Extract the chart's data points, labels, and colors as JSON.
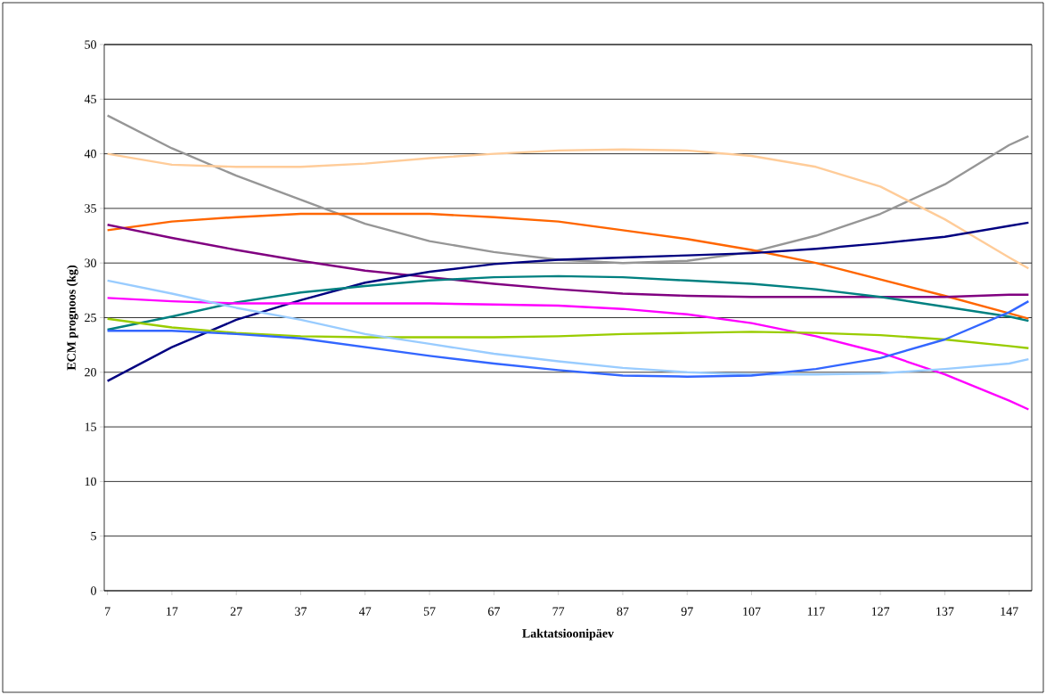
{
  "chart_data": {
    "type": "line",
    "xlabel": "Laktatsioonipäev",
    "ylabel": "ECM prognoos (kg)",
    "x": [
      7,
      17,
      27,
      37,
      47,
      57,
      67,
      77,
      87,
      97,
      107,
      117,
      127,
      137,
      147,
      150
    ],
    "xlim": [
      6.5,
      150.5
    ],
    "xticks": [
      7,
      17,
      27,
      37,
      47,
      57,
      67,
      77,
      87,
      97,
      107,
      117,
      127,
      137,
      147
    ],
    "ylim": [
      0,
      50
    ],
    "yticks": [
      0,
      5,
      10,
      15,
      20,
      25,
      30,
      35,
      40,
      45,
      50
    ],
    "grid": "y",
    "marker": "none",
    "line_style": "solid",
    "series": [
      {
        "color": "#969696",
        "values": [
          43.5,
          40.5,
          38,
          35.8,
          33.6,
          32,
          31,
          30.3,
          30,
          30.2,
          31,
          32.5,
          34.5,
          37.2,
          40.8,
          41.6
        ]
      },
      {
        "color": "#ffcc99",
        "values": [
          40,
          39,
          38.8,
          38.8,
          39.1,
          39.6,
          40,
          40.3,
          40.4,
          40.3,
          39.8,
          38.8,
          37,
          34,
          30.5,
          29.5
        ]
      },
      {
        "color": "#ff6600",
        "values": [
          33,
          33.8,
          34.2,
          34.5,
          34.5,
          34.5,
          34.2,
          33.8,
          33,
          32.2,
          31.2,
          30,
          28.5,
          27,
          25.4,
          24.9
        ]
      },
      {
        "color": "#800080",
        "values": [
          33.5,
          32.3,
          31.2,
          30.2,
          29.3,
          28.7,
          28.1,
          27.6,
          27.2,
          27,
          26.9,
          26.9,
          26.9,
          26.9,
          27.1,
          27.1
        ]
      },
      {
        "color": "#000080",
        "values": [
          19.2,
          22.3,
          24.8,
          26.6,
          28.2,
          29.2,
          29.9,
          30.3,
          30.5,
          30.7,
          30.9,
          31.3,
          31.8,
          32.4,
          33.4,
          33.7
        ]
      },
      {
        "color": "#008080",
        "values": [
          23.9,
          25.1,
          26.4,
          27.3,
          27.9,
          28.4,
          28.7,
          28.8,
          28.7,
          28.4,
          28.1,
          27.6,
          26.9,
          26,
          25.1,
          24.7
        ]
      },
      {
        "color": "#ff00ff",
        "values": [
          26.8,
          26.5,
          26.3,
          26.3,
          26.3,
          26.3,
          26.2,
          26.1,
          25.8,
          25.3,
          24.5,
          23.3,
          21.8,
          19.8,
          17.4,
          16.6
        ]
      },
      {
        "color": "#99cc00",
        "values": [
          24.9,
          24.1,
          23.6,
          23.3,
          23.2,
          23.2,
          23.2,
          23.3,
          23.5,
          23.6,
          23.7,
          23.6,
          23.4,
          23,
          22.4,
          22.2
        ]
      },
      {
        "color": "#99ccff",
        "values": [
          28.4,
          27.2,
          25.9,
          24.8,
          23.5,
          22.6,
          21.7,
          21,
          20.4,
          20,
          19.8,
          19.8,
          19.9,
          20.3,
          20.8,
          21.2
        ]
      },
      {
        "color": "#3366ff",
        "values": [
          23.8,
          23.8,
          23.5,
          23.1,
          22.3,
          21.5,
          20.8,
          20.2,
          19.7,
          19.6,
          19.7,
          20.3,
          21.3,
          23,
          25.5,
          26.5
        ]
      }
    ]
  }
}
